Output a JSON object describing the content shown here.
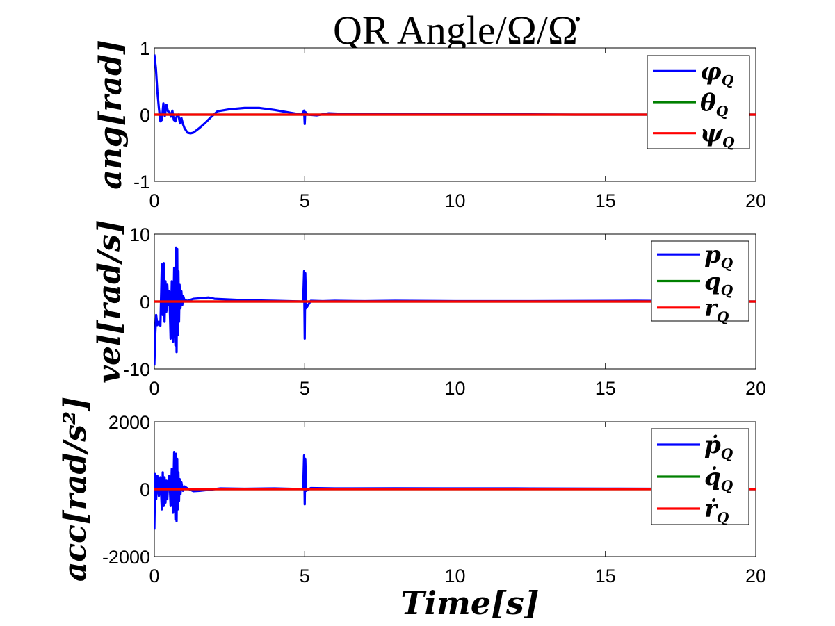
{
  "figure": {
    "title": "QR Angle/Ω/Ω̇",
    "xlabel": "Time[s]"
  },
  "chart_data": [
    {
      "type": "line",
      "ylabel": "ang[rad]",
      "xlim": [
        0,
        20
      ],
      "ylim": [
        -1,
        1
      ],
      "xticks": [
        0,
        5,
        10,
        15,
        20
      ],
      "yticks": [
        -1,
        0,
        1
      ],
      "xtick_labels": [
        "0",
        "5",
        "10",
        "15",
        "20"
      ],
      "ytick_labels": [
        "-1",
        "0",
        "1"
      ],
      "grid": false,
      "legend_position": "top-right",
      "series": [
        {
          "name": "φ_Q",
          "color": "#0000ff",
          "x": [
            0,
            0.05,
            0.1,
            0.15,
            0.2,
            0.25,
            0.3,
            0.35,
            0.4,
            0.45,
            0.5,
            0.55,
            0.6,
            0.65,
            0.7,
            0.75,
            0.8,
            0.85,
            0.9,
            0.95,
            1.0,
            1.1,
            1.2,
            1.3,
            1.5,
            1.7,
            1.9,
            2.1,
            2.5,
            3.0,
            3.5,
            4.0,
            4.5,
            4.9,
            4.98,
            5.0,
            5.02,
            5.1,
            5.4,
            5.8,
            6.3,
            7.0,
            8.0,
            9.0,
            10.0,
            11.0,
            12.0,
            14.0,
            16.0,
            18.0,
            20.0
          ],
          "y": [
            0.9,
            0.7,
            0.35,
            0.1,
            -0.1,
            -0.08,
            0.17,
            -0.02,
            0.15,
            0.05,
            0.04,
            -0.03,
            0.06,
            -0.08,
            -0.1,
            -0.02,
            0.0,
            -0.13,
            -0.05,
            -0.14,
            -0.2,
            -0.27,
            -0.28,
            -0.27,
            -0.2,
            -0.12,
            -0.03,
            0.05,
            0.08,
            0.1,
            0.1,
            0.07,
            0.03,
            0.0,
            0.06,
            -0.14,
            0.04,
            0.0,
            -0.01,
            0.02,
            0.01,
            0.01,
            0.01,
            0.005,
            0.01,
            0.005,
            0.005,
            0.0,
            0.0,
            0.0,
            0.0
          ]
        },
        {
          "name": "θ_Q",
          "color": "#008000",
          "x": [
            0,
            20
          ],
          "y": [
            0,
            0
          ]
        },
        {
          "name": "ψ_Q",
          "color": "#ff0000",
          "x": [
            0,
            20
          ],
          "y": [
            0,
            0
          ]
        }
      ]
    },
    {
      "type": "line",
      "ylabel": "vel[rad/s]",
      "xlim": [
        0,
        20
      ],
      "ylim": [
        -10,
        10
      ],
      "xticks": [
        0,
        5,
        10,
        15,
        20
      ],
      "yticks": [
        -10,
        0,
        10
      ],
      "xtick_labels": [
        "0",
        "5",
        "10",
        "15",
        "20"
      ],
      "ytick_labels": [
        "-10",
        "0",
        "10"
      ],
      "grid": false,
      "legend_position": "top-right",
      "series": [
        {
          "name": "p_Q",
          "color": "#0000ff",
          "x": [
            0,
            0.03,
            0.06,
            0.1,
            0.15,
            0.2,
            0.25,
            0.28,
            0.31,
            0.34,
            0.37,
            0.4,
            0.43,
            0.46,
            0.5,
            0.54,
            0.58,
            0.62,
            0.66,
            0.7,
            0.72,
            0.74,
            0.76,
            0.78,
            0.8,
            0.82,
            0.84,
            0.87,
            0.9,
            0.93,
            0.96,
            1.0,
            1.1,
            1.3,
            1.6,
            1.8,
            2.0,
            2.5,
            3.0,
            4.0,
            4.95,
            4.98,
            5.0,
            5.02,
            5.05,
            5.2,
            5.6,
            6.0,
            7.0,
            8.0,
            10.0,
            12.0,
            16.0,
            20.0
          ],
          "y": [
            -9.5,
            -5,
            -2,
            -3.5,
            -3,
            -3.6,
            5.5,
            -2,
            5.7,
            -3,
            3,
            -1.5,
            2.5,
            -0.5,
            1.5,
            -5.5,
            3,
            -6,
            5,
            -6.5,
            8,
            -7.5,
            7.8,
            -5,
            4.5,
            -3,
            2.5,
            -1,
            1.5,
            -0.5,
            0.8,
            0.2,
            0.1,
            0.4,
            0.5,
            0.6,
            0.4,
            0.3,
            0.2,
            0.1,
            0.0,
            4.5,
            -5.5,
            4.2,
            -1,
            0.1,
            0.05,
            0.1,
            0.05,
            0.1,
            0.05,
            0.05,
            0.1,
            0.0
          ]
        },
        {
          "name": "q_Q",
          "color": "#008000",
          "x": [
            0,
            20
          ],
          "y": [
            0,
            0
          ]
        },
        {
          "name": "r_Q",
          "color": "#ff0000",
          "x": [
            0,
            20
          ],
          "y": [
            0,
            0
          ]
        }
      ]
    },
    {
      "type": "line",
      "ylabel": "acc[rad/s²]",
      "xlim": [
        0,
        20
      ],
      "ylim": [
        -2000,
        2000
      ],
      "xticks": [
        0,
        5,
        10,
        15,
        20
      ],
      "yticks": [
        -2000,
        0,
        2000
      ],
      "xtick_labels": [
        "0",
        "5",
        "10",
        "15",
        "20"
      ],
      "ytick_labels": [
        "-2000",
        "0",
        "2000"
      ],
      "grid": false,
      "legend_position": "top-right",
      "series": [
        {
          "name": "ṗ_Q",
          "color": "#0000ff",
          "x": [
            0,
            0.03,
            0.06,
            0.1,
            0.15,
            0.2,
            0.25,
            0.28,
            0.31,
            0.34,
            0.37,
            0.4,
            0.43,
            0.46,
            0.5,
            0.54,
            0.58,
            0.62,
            0.66,
            0.7,
            0.72,
            0.74,
            0.76,
            0.78,
            0.8,
            0.82,
            0.84,
            0.87,
            0.9,
            0.95,
            1.0,
            1.1,
            1.3,
            1.5,
            1.8,
            2.2,
            3.0,
            4.0,
            4.95,
            4.98,
            5.0,
            5.02,
            5.05,
            5.2,
            6.0,
            8.0,
            10.0,
            12.0,
            15.0,
            20.0
          ],
          "y": [
            -1200,
            450,
            -300,
            400,
            -200,
            350,
            -600,
            500,
            -500,
            350,
            -400,
            250,
            -300,
            200,
            400,
            -500,
            600,
            -700,
            1100,
            -900,
            1050,
            -950,
            900,
            -600,
            500,
            -350,
            300,
            -150,
            200,
            -50,
            80,
            20,
            -60,
            -50,
            -20,
            20,
            10,
            20,
            0,
            1000,
            -450,
            900,
            -50,
            30,
            20,
            25,
            20,
            20,
            15,
            0
          ]
        },
        {
          "name": "q̇_Q",
          "color": "#008000",
          "x": [
            0,
            20
          ],
          "y": [
            0,
            0
          ]
        },
        {
          "name": "ṙ_Q",
          "color": "#ff0000",
          "x": [
            0,
            20
          ],
          "y": [
            0,
            0
          ]
        }
      ]
    }
  ]
}
